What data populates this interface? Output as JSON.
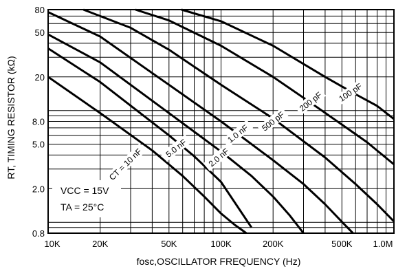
{
  "chart_data": {
    "type": "line",
    "title": "",
    "xlabel": "fosc,OSCILLATOR FREQUENCY (Hz)",
    "ylabel": "RT, TIMING RESISTOR (kΩ)",
    "x_scale": "log",
    "y_scale": "log",
    "xlim": [
      10000,
      1000000
    ],
    "ylim": [
      0.8,
      80
    ],
    "grid": true,
    "x_tick_labels": [
      {
        "value": 10000,
        "label": "10K"
      },
      {
        "value": 20000,
        "label": "20K"
      },
      {
        "value": 50000,
        "label": "50K"
      },
      {
        "value": 100000,
        "label": "100K"
      },
      {
        "value": 200000,
        "label": "200K"
      },
      {
        "value": 500000,
        "label": "500K"
      },
      {
        "value": 1000000,
        "label": "1.0M"
      }
    ],
    "y_tick_labels": [
      {
        "value": 80,
        "label": "80"
      },
      {
        "value": 50,
        "label": "50"
      },
      {
        "value": 20,
        "label": "20"
      },
      {
        "value": 8,
        "label": "8.0"
      },
      {
        "value": 5,
        "label": "5.0"
      },
      {
        "value": 2,
        "label": "2.0"
      },
      {
        "value": 0.8,
        "label": "0.8"
      }
    ],
    "series": [
      {
        "name": "100 pF",
        "x": [
          59000,
          100000,
          200000,
          400000,
          600000,
          800000,
          1000000
        ],
        "y": [
          80,
          63,
          38,
          20,
          14,
          11,
          8.4
        ]
      },
      {
        "name": "200 pF",
        "x": [
          32000,
          50000,
          100000,
          200000,
          300000,
          500000,
          700000,
          1000000
        ],
        "y": [
          80,
          64,
          38,
          20,
          13,
          7.5,
          5.2,
          3.3
        ]
      },
      {
        "name": "500 pF",
        "x": [
          16000,
          30000,
          50000,
          100000,
          200000,
          400000,
          600000,
          800000,
          1000000
        ],
        "y": [
          80,
          55,
          35,
          17,
          8.5,
          3.8,
          2.2,
          1.45,
          1.02
        ]
      },
      {
        "name": "1.0 nF",
        "x": [
          10000,
          20000,
          50000,
          100000,
          200000,
          300000,
          400000,
          520000,
          580000
        ],
        "y": [
          76,
          46,
          17,
          8,
          3.6,
          2.2,
          1.45,
          0.95,
          0.8
        ]
      },
      {
        "name": "2.0 nF",
        "x": [
          10000,
          20000,
          50000,
          100000,
          150000,
          200000,
          250000,
          300000
        ],
        "y": [
          48,
          27,
          9.5,
          4.3,
          2.6,
          1.7,
          1.15,
          0.8
        ]
      },
      {
        "name": "5.0 nF",
        "x": [
          10000,
          20000,
          50000,
          70000,
          100000,
          150000
        ],
        "y": [
          36,
          18,
          6,
          3.9,
          2.3,
          0.9
        ]
      },
      {
        "name": "CT = 10 nF",
        "x": [
          10000,
          20000,
          40000,
          60000,
          80000,
          100000,
          120000,
          140000
        ],
        "y": [
          20,
          9.5,
          4.4,
          2.6,
          1.7,
          1.2,
          0.95,
          0.8
        ]
      }
    ],
    "annotations": [
      {
        "text": "VCC = 15V"
      },
      {
        "text": "TA = 25°C"
      }
    ]
  }
}
